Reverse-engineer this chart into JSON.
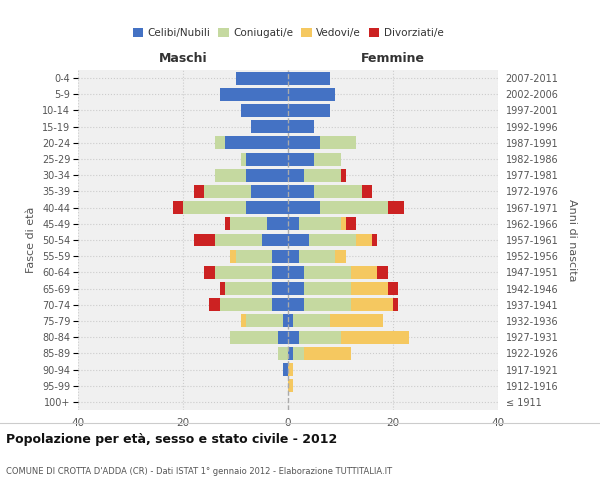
{
  "age_groups": [
    "100+",
    "95-99",
    "90-94",
    "85-89",
    "80-84",
    "75-79",
    "70-74",
    "65-69",
    "60-64",
    "55-59",
    "50-54",
    "45-49",
    "40-44",
    "35-39",
    "30-34",
    "25-29",
    "20-24",
    "15-19",
    "10-14",
    "5-9",
    "0-4"
  ],
  "birth_years": [
    "≤ 1911",
    "1912-1916",
    "1917-1921",
    "1922-1926",
    "1927-1931",
    "1932-1936",
    "1937-1941",
    "1942-1946",
    "1947-1951",
    "1952-1956",
    "1957-1961",
    "1962-1966",
    "1967-1971",
    "1972-1976",
    "1977-1981",
    "1982-1986",
    "1987-1991",
    "1992-1996",
    "1997-2001",
    "2002-2006",
    "2007-2011"
  ],
  "males": {
    "celibi": [
      0,
      0,
      1,
      0,
      2,
      1,
      3,
      3,
      3,
      3,
      5,
      4,
      8,
      7,
      8,
      8,
      12,
      7,
      9,
      13,
      10
    ],
    "coniugati": [
      0,
      0,
      0,
      2,
      9,
      7,
      10,
      9,
      11,
      7,
      9,
      7,
      12,
      9,
      6,
      1,
      2,
      0,
      0,
      0,
      0
    ],
    "vedovi": [
      0,
      0,
      0,
      0,
      0,
      1,
      0,
      0,
      0,
      1,
      0,
      0,
      0,
      0,
      0,
      0,
      0,
      0,
      0,
      0,
      0
    ],
    "divorziati": [
      0,
      0,
      0,
      0,
      0,
      0,
      2,
      1,
      2,
      0,
      4,
      1,
      2,
      2,
      0,
      0,
      0,
      0,
      0,
      0,
      0
    ]
  },
  "females": {
    "nubili": [
      0,
      0,
      0,
      1,
      2,
      1,
      3,
      3,
      3,
      2,
      4,
      2,
      6,
      5,
      3,
      5,
      6,
      5,
      8,
      9,
      8
    ],
    "coniugate": [
      0,
      0,
      0,
      2,
      8,
      7,
      9,
      9,
      9,
      7,
      9,
      8,
      13,
      9,
      7,
      5,
      7,
      0,
      0,
      0,
      0
    ],
    "vedove": [
      0,
      1,
      1,
      9,
      13,
      10,
      8,
      7,
      5,
      2,
      3,
      1,
      0,
      0,
      0,
      0,
      0,
      0,
      0,
      0,
      0
    ],
    "divorziate": [
      0,
      0,
      0,
      0,
      0,
      0,
      1,
      2,
      2,
      0,
      1,
      2,
      3,
      2,
      1,
      0,
      0,
      0,
      0,
      0,
      0
    ]
  },
  "colors": {
    "celibi": "#4472c4",
    "coniugati": "#c5d9a0",
    "vedovi": "#f5c860",
    "divorziati": "#cc2222"
  },
  "xlim": 40,
  "title": "Popolazione per età, sesso e stato civile - 2012",
  "subtitle": "COMUNE DI CROTTA D'ADDA (CR) - Dati ISTAT 1° gennaio 2012 - Elaborazione TUTTITALIA.IT",
  "ylabel_left": "Fasce di età",
  "ylabel_right": "Anni di nascita",
  "maschi_label": "Maschi",
  "femmine_label": "Femmine",
  "legend_labels": [
    "Celibi/Nubili",
    "Coniugati/e",
    "Vedovi/e",
    "Divorziati/e"
  ],
  "bg_color": "#f0f0f0",
  "grid_color": "#cccccc"
}
